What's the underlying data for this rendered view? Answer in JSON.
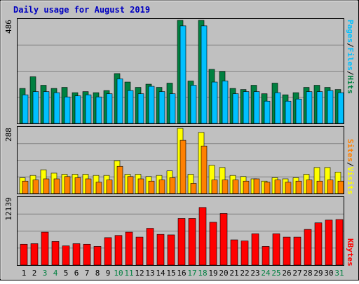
{
  "title": "Daily usage for August 2019",
  "colors": {
    "background": "#C0C0C0",
    "title": "#0000C0",
    "hits": "#008040",
    "files": "#00C0FF",
    "pages": "#00C0FF",
    "sites": "#FF8000",
    "visits": "#FFFF00",
    "kbytes": "#FF0000",
    "weekend_day": "#008040",
    "weekday": "#000000",
    "gridline": "#808080"
  },
  "panels": {
    "hits": {
      "max_label": "486",
      "legend": [
        "Pages",
        "/",
        "Files",
        "/",
        "Hits"
      ]
    },
    "visits": {
      "max_label": "288",
      "legend": [
        "Sites",
        "/",
        "Visits"
      ]
    },
    "kbytes": {
      "max_label": "12139",
      "legend": [
        "KBytes"
      ]
    }
  },
  "chart_data": {
    "type": "bar",
    "title": "Daily usage for August 2019",
    "categories": [
      "1",
      "2",
      "3",
      "4",
      "5",
      "6",
      "7",
      "8",
      "9",
      "10",
      "11",
      "12",
      "13",
      "14",
      "15",
      "16",
      "17",
      "18",
      "19",
      "20",
      "21",
      "22",
      "23",
      "24",
      "25",
      "26",
      "27",
      "28",
      "29",
      "30",
      "31"
    ],
    "weekend_days": [
      "3",
      "4",
      "10",
      "11",
      "17",
      "18",
      "24",
      "25",
      "31"
    ],
    "panels": [
      {
        "name": "hits",
        "ymax": 486,
        "series": [
          {
            "name": "Hits",
            "values": [
              165,
              220,
              180,
              165,
              170,
              145,
              150,
              145,
              155,
              235,
              195,
              170,
              185,
              170,
              190,
              486,
              200,
              486,
              255,
              245,
              165,
              160,
              180,
              140,
              190,
              135,
              145,
              170,
              180,
              170,
              160
            ]
          },
          {
            "name": "Files",
            "values": [
              135,
              150,
              150,
              145,
              125,
              130,
              135,
              125,
              140,
              210,
              155,
              140,
              175,
              150,
              140,
              460,
              180,
              460,
              195,
              200,
              140,
              150,
              150,
              105,
              145,
              105,
              115,
              150,
              150,
              155,
              145
            ]
          },
          {
            "name": "Pages",
            "values": [
              0,
              0,
              0,
              0,
              0,
              0,
              0,
              0,
              0,
              0,
              0,
              0,
              0,
              0,
              0,
              0,
              0,
              0,
              0,
              0,
              0,
              0,
              0,
              0,
              0,
              0,
              0,
              0,
              0,
              0,
              0
            ]
          }
        ]
      },
      {
        "name": "visits",
        "ymax": 288,
        "series": [
          {
            "name": "Visits",
            "values": [
              70,
              80,
              105,
              90,
              85,
              85,
              85,
              80,
              80,
              145,
              85,
              85,
              75,
              80,
              100,
              288,
              85,
              270,
              125,
              115,
              80,
              75,
              65,
              55,
              70,
              65,
              70,
              85,
              115,
              115,
              95
            ]
          },
          {
            "name": "Sites",
            "values": [
              55,
              60,
              65,
              65,
              75,
              70,
              65,
              50,
              60,
              120,
              75,
              65,
              55,
              60,
              70,
              235,
              45,
              210,
              60,
              60,
              60,
              55,
              65,
              50,
              60,
              50,
              55,
              60,
              55,
              60,
              55
            ]
          }
        ]
      },
      {
        "name": "kbytes",
        "ymax": 12139,
        "series": [
          {
            "name": "KBytes",
            "values": [
              3800,
              3900,
              6000,
              4300,
              3500,
              3900,
              3800,
              3400,
              5000,
              5400,
              6000,
              5100,
              6700,
              5600,
              5500,
              8500,
              8500,
              10500,
              7800,
              9400,
              4600,
              4400,
              5700,
              3400,
              5700,
              5100,
              5100,
              6500,
              7700,
              8200,
              8300
            ]
          }
        ]
      }
    ]
  }
}
